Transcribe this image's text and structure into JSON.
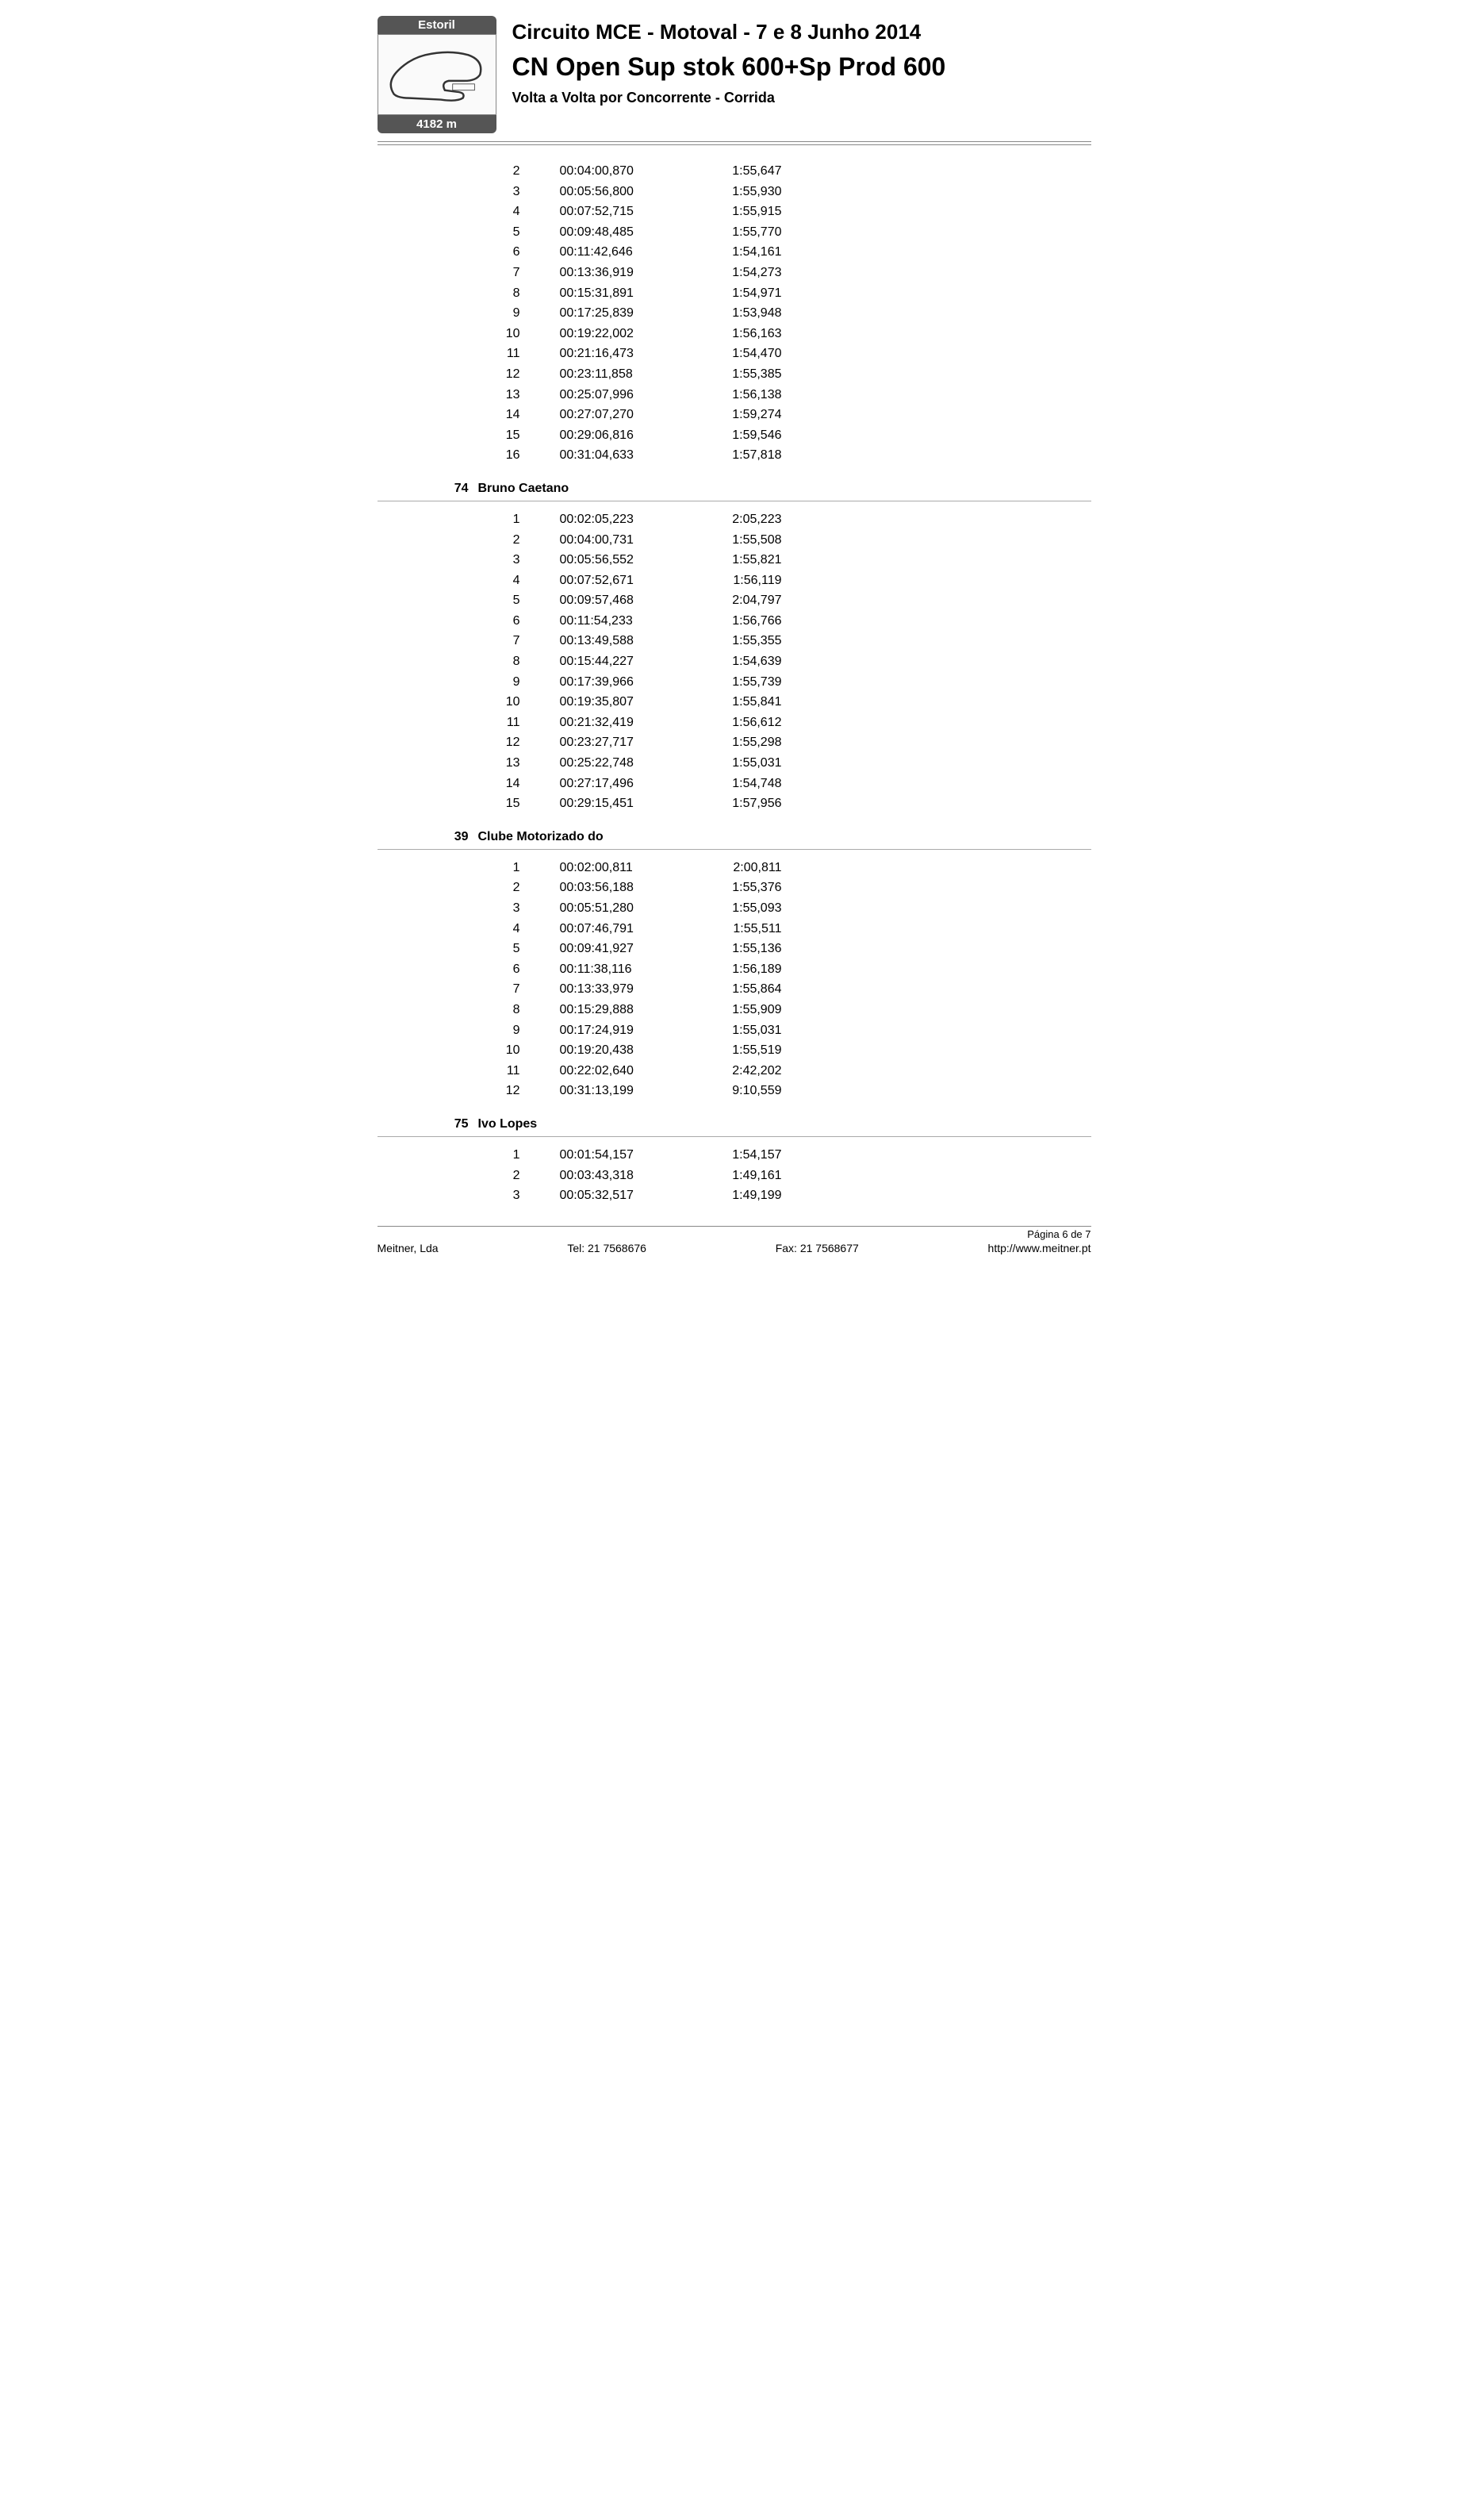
{
  "track": {
    "name": "Estoril",
    "distance": "4182 m"
  },
  "event_title": "Circuito MCE - Motoval - 7 e 8 Junho 2014",
  "class_title": "CN Open Sup stok 600+Sp Prod 600",
  "report_title": "Volta a Volta por Concorrente  -  Corrida",
  "sections": [
    {
      "number": "",
      "name": "",
      "show_header": false,
      "laps": [
        {
          "n": "2",
          "cum": "00:04:00,870",
          "lap": "1:55,647"
        },
        {
          "n": "3",
          "cum": "00:05:56,800",
          "lap": "1:55,930"
        },
        {
          "n": "4",
          "cum": "00:07:52,715",
          "lap": "1:55,915"
        },
        {
          "n": "5",
          "cum": "00:09:48,485",
          "lap": "1:55,770"
        },
        {
          "n": "6",
          "cum": "00:11:42,646",
          "lap": "1:54,161"
        },
        {
          "n": "7",
          "cum": "00:13:36,919",
          "lap": "1:54,273"
        },
        {
          "n": "8",
          "cum": "00:15:31,891",
          "lap": "1:54,971"
        },
        {
          "n": "9",
          "cum": "00:17:25,839",
          "lap": "1:53,948"
        },
        {
          "n": "10",
          "cum": "00:19:22,002",
          "lap": "1:56,163"
        },
        {
          "n": "11",
          "cum": "00:21:16,473",
          "lap": "1:54,470"
        },
        {
          "n": "12",
          "cum": "00:23:11,858",
          "lap": "1:55,385"
        },
        {
          "n": "13",
          "cum": "00:25:07,996",
          "lap": "1:56,138"
        },
        {
          "n": "14",
          "cum": "00:27:07,270",
          "lap": "1:59,274"
        },
        {
          "n": "15",
          "cum": "00:29:06,816",
          "lap": "1:59,546"
        },
        {
          "n": "16",
          "cum": "00:31:04,633",
          "lap": "1:57,818"
        }
      ]
    },
    {
      "number": "74",
      "name": "Bruno Caetano",
      "show_header": true,
      "laps": [
        {
          "n": "1",
          "cum": "00:02:05,223",
          "lap": "2:05,223"
        },
        {
          "n": "2",
          "cum": "00:04:00,731",
          "lap": "1:55,508"
        },
        {
          "n": "3",
          "cum": "00:05:56,552",
          "lap": "1:55,821"
        },
        {
          "n": "4",
          "cum": "00:07:52,671",
          "lap": "1:56,119"
        },
        {
          "n": "5",
          "cum": "00:09:57,468",
          "lap": "2:04,797"
        },
        {
          "n": "6",
          "cum": "00:11:54,233",
          "lap": "1:56,766"
        },
        {
          "n": "7",
          "cum": "00:13:49,588",
          "lap": "1:55,355"
        },
        {
          "n": "8",
          "cum": "00:15:44,227",
          "lap": "1:54,639"
        },
        {
          "n": "9",
          "cum": "00:17:39,966",
          "lap": "1:55,739"
        },
        {
          "n": "10",
          "cum": "00:19:35,807",
          "lap": "1:55,841"
        },
        {
          "n": "11",
          "cum": "00:21:32,419",
          "lap": "1:56,612"
        },
        {
          "n": "12",
          "cum": "00:23:27,717",
          "lap": "1:55,298"
        },
        {
          "n": "13",
          "cum": "00:25:22,748",
          "lap": "1:55,031"
        },
        {
          "n": "14",
          "cum": "00:27:17,496",
          "lap": "1:54,748"
        },
        {
          "n": "15",
          "cum": "00:29:15,451",
          "lap": "1:57,956"
        }
      ]
    },
    {
      "number": "39",
      "name": "Clube Motorizado do",
      "show_header": true,
      "laps": [
        {
          "n": "1",
          "cum": "00:02:00,811",
          "lap": "2:00,811"
        },
        {
          "n": "2",
          "cum": "00:03:56,188",
          "lap": "1:55,376"
        },
        {
          "n": "3",
          "cum": "00:05:51,280",
          "lap": "1:55,093"
        },
        {
          "n": "4",
          "cum": "00:07:46,791",
          "lap": "1:55,511"
        },
        {
          "n": "5",
          "cum": "00:09:41,927",
          "lap": "1:55,136"
        },
        {
          "n": "6",
          "cum": "00:11:38,116",
          "lap": "1:56,189"
        },
        {
          "n": "7",
          "cum": "00:13:33,979",
          "lap": "1:55,864"
        },
        {
          "n": "8",
          "cum": "00:15:29,888",
          "lap": "1:55,909"
        },
        {
          "n": "9",
          "cum": "00:17:24,919",
          "lap": "1:55,031"
        },
        {
          "n": "10",
          "cum": "00:19:20,438",
          "lap": "1:55,519"
        },
        {
          "n": "11",
          "cum": "00:22:02,640",
          "lap": "2:42,202"
        },
        {
          "n": "12",
          "cum": "00:31:13,199",
          "lap": "9:10,559"
        }
      ]
    },
    {
      "number": "75",
      "name": "Ivo Lopes",
      "show_header": true,
      "laps": [
        {
          "n": "1",
          "cum": "00:01:54,157",
          "lap": "1:54,157"
        },
        {
          "n": "2",
          "cum": "00:03:43,318",
          "lap": "1:49,161"
        },
        {
          "n": "3",
          "cum": "00:05:32,517",
          "lap": "1:49,199"
        }
      ]
    }
  ],
  "page_number": "Página 6 de 7",
  "footer": {
    "company": "Meitner, Lda",
    "tel": "Tel: 21 7568676",
    "fax": "Fax: 21 7568677",
    "url": "http://www.meitner.pt"
  }
}
